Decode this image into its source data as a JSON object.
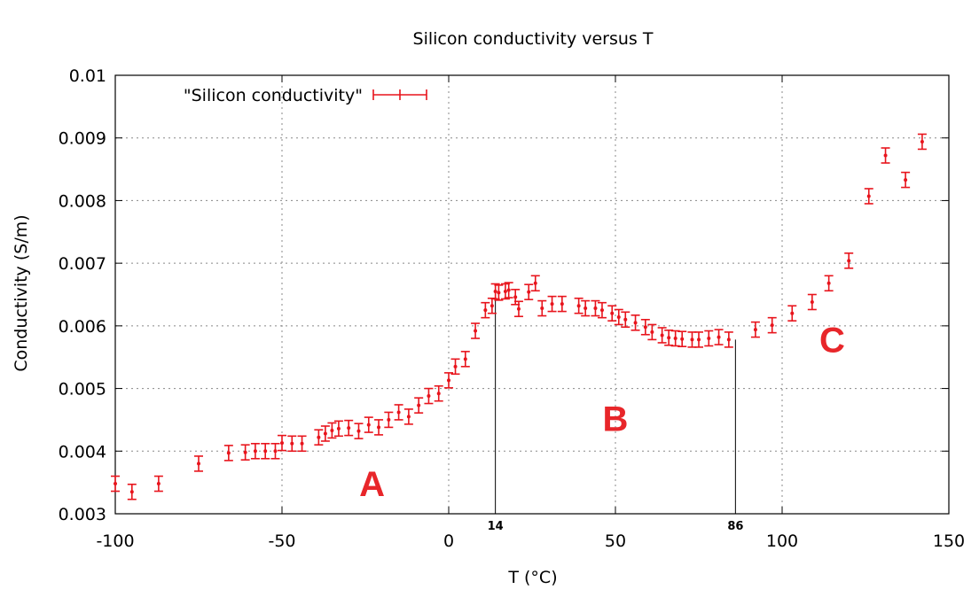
{
  "chart_data": {
    "type": "scatter",
    "title": "Silicon conductivity versus T",
    "xlabel": "T (°C)",
    "ylabel": "Conductivity (S/m)",
    "xlim": [
      -100,
      150
    ],
    "ylim": [
      0.003,
      0.01
    ],
    "x_ticks": [
      -100,
      -50,
      0,
      50,
      100,
      150
    ],
    "x_tick_labels": [
      "-100",
      "-50",
      "0",
      "50",
      "100",
      "150"
    ],
    "y_ticks": [
      0.003,
      0.004,
      0.005,
      0.006,
      0.007,
      0.008,
      0.009,
      0.01
    ],
    "y_tick_labels": [
      "0.003",
      "0.004",
      "0.005",
      "0.006",
      "0.007",
      "0.008",
      "0.009",
      "0.01"
    ],
    "grid": true,
    "legend_position": "top-left",
    "colors": {
      "series": "#e8141c",
      "region_labels": "#e8262a",
      "grid": "#888888"
    },
    "series": [
      {
        "name": "\"Silicon conductivity\"",
        "error_bar": 0.00012,
        "points": [
          [
            -100,
            0.00348
          ],
          [
            -95,
            0.00335
          ],
          [
            -87,
            0.00348
          ],
          [
            -75,
            0.0038
          ],
          [
            -66,
            0.00397
          ],
          [
            -61,
            0.00398
          ],
          [
            -58,
            0.004
          ],
          [
            -55,
            0.004
          ],
          [
            -52,
            0.004
          ],
          [
            -50,
            0.00413
          ],
          [
            -47,
            0.00412
          ],
          [
            -44,
            0.00412
          ],
          [
            -39,
            0.00422
          ],
          [
            -37,
            0.00428
          ],
          [
            -35,
            0.00433
          ],
          [
            -33,
            0.00436
          ],
          [
            -30,
            0.00437
          ],
          [
            -27,
            0.00432
          ],
          [
            -24,
            0.00442
          ],
          [
            -21,
            0.00438
          ],
          [
            -18,
            0.0045
          ],
          [
            -15,
            0.00462
          ],
          [
            -12,
            0.00455
          ],
          [
            -9,
            0.00473
          ],
          [
            -6,
            0.00488
          ],
          [
            -3,
            0.00492
          ],
          [
            0,
            0.00513
          ],
          [
            2,
            0.00535
          ],
          [
            5,
            0.00547
          ],
          [
            8,
            0.00592
          ],
          [
            11,
            0.00625
          ],
          [
            13,
            0.00632
          ],
          [
            14,
            0.00655
          ],
          [
            15,
            0.00653
          ],
          [
            17,
            0.00655
          ],
          [
            18,
            0.00657
          ],
          [
            20,
            0.00646
          ],
          [
            21,
            0.00627
          ],
          [
            24,
            0.00654
          ],
          [
            26,
            0.00668
          ],
          [
            28,
            0.00628
          ],
          [
            31,
            0.00635
          ],
          [
            34,
            0.00635
          ],
          [
            39,
            0.00632
          ],
          [
            41,
            0.00628
          ],
          [
            44,
            0.00628
          ],
          [
            46,
            0.00625
          ],
          [
            49,
            0.0062
          ],
          [
            51,
            0.00614
          ],
          [
            53,
            0.0061
          ],
          [
            56,
            0.00605
          ],
          [
            59,
            0.00598
          ],
          [
            61,
            0.0059
          ],
          [
            64,
            0.00585
          ],
          [
            66,
            0.00581
          ],
          [
            68,
            0.0058
          ],
          [
            70,
            0.00579
          ],
          [
            73,
            0.00578
          ],
          [
            75,
            0.00578
          ],
          [
            78,
            0.0058
          ],
          [
            81,
            0.00582
          ],
          [
            84,
            0.00578
          ],
          [
            92,
            0.00594
          ],
          [
            97,
            0.00601
          ],
          [
            103,
            0.0062
          ],
          [
            109,
            0.00638
          ],
          [
            114,
            0.00668
          ],
          [
            120,
            0.00704
          ],
          [
            126,
            0.00807
          ],
          [
            131,
            0.00872
          ],
          [
            137,
            0.00833
          ],
          [
            142,
            0.00894
          ]
        ]
      }
    ],
    "vertical_markers": [
      {
        "x": 14,
        "y_top": 0.00655,
        "label": "14"
      },
      {
        "x": 86,
        "y_top": 0.00578,
        "label": "86"
      }
    ],
    "annotations": [
      {
        "text": "A",
        "x": -23,
        "y": 0.00348
      },
      {
        "text": "B",
        "x": 50,
        "y": 0.00452
      },
      {
        "text": "C",
        "x": 115,
        "y": 0.00578
      }
    ]
  }
}
